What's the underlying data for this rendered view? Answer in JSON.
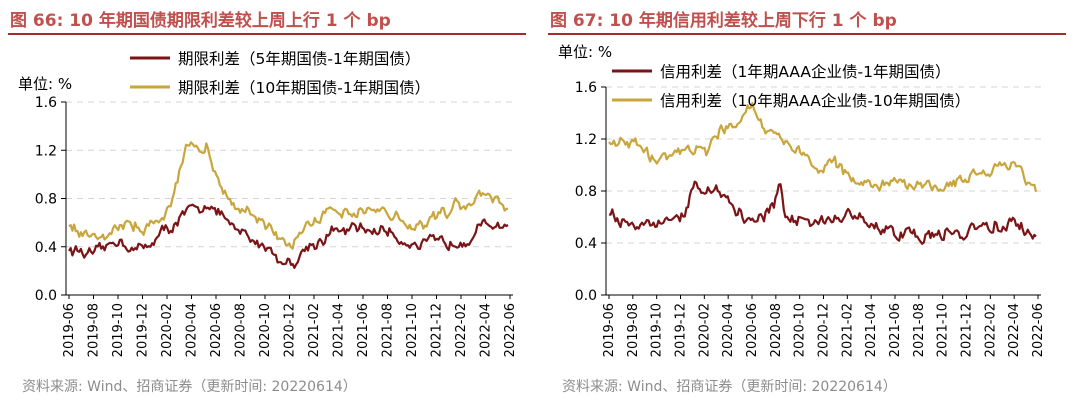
{
  "colors": {
    "series_dark": "#7B1416",
    "series_gold": "#C9A63D",
    "title": "#C0504D",
    "rule": "#A52A2A",
    "grid": "#d9d9d9",
    "source": "#8c8c8c"
  },
  "x_tick_labels": [
    "2019-06",
    "2019-08",
    "2019-10",
    "2019-12",
    "2020-02",
    "2020-04",
    "2020-06",
    "2020-08",
    "2020-10",
    "2020-12",
    "2021-02",
    "2021-04",
    "2021-06",
    "2021-08",
    "2021-10",
    "2021-12",
    "2022-02",
    "2022-04",
    "2022-06"
  ],
  "left": {
    "title": "图 66:  10 年期国债期限利差较上周上行 1 个 bp",
    "unit_label": "单位:   %",
    "source": "资料来源:  Wind、招商证券（更新时间: 20220614）"
  },
  "right": {
    "title": "图 67:  10 年期信用利差较上周下行 1 个 bp",
    "unit_label": "单位:   %",
    "source": "资料来源:  Wind、招商证券（更新时间: 20220614）"
  },
  "chart_data": [
    {
      "type": "line",
      "ylim": [
        0,
        1.6
      ],
      "yticks": [
        "0.0",
        "0.4",
        "0.8",
        "1.2",
        "1.6"
      ],
      "x": [
        "2019-06",
        "2019-08",
        "2019-10",
        "2019-12",
        "2020-02",
        "2020-04",
        "2020-06",
        "2020-08",
        "2020-10",
        "2020-12",
        "2021-02",
        "2021-04",
        "2021-06",
        "2021-08",
        "2021-10",
        "2021-12",
        "2022-02",
        "2022-04",
        "2022-06"
      ],
      "series": [
        {
          "name": "期限利差（5年期国债-1年期国债）",
          "values": [
            0.38,
            0.36,
            0.45,
            0.4,
            0.56,
            0.7,
            0.7,
            0.52,
            0.4,
            0.26,
            0.45,
            0.52,
            0.55,
            0.53,
            0.43,
            0.44,
            0.46,
            0.55,
            0.58
          ]
        },
        {
          "name": "期限利差（10年期国债-1年期国债）",
          "values": [
            0.58,
            0.5,
            0.56,
            0.53,
            0.7,
            1.28,
            0.95,
            0.72,
            0.57,
            0.45,
            0.65,
            0.72,
            0.75,
            0.7,
            0.6,
            0.62,
            0.72,
            0.82,
            0.76
          ]
        }
      ]
    },
    {
      "type": "line",
      "ylim": [
        0,
        1.6
      ],
      "yticks": [
        "0.0",
        "0.4",
        "0.8",
        "1.2",
        "1.6"
      ],
      "x": [
        "2019-06",
        "2019-08",
        "2019-10",
        "2019-12",
        "2020-02",
        "2020-04",
        "2020-06",
        "2020-08",
        "2020-10",
        "2020-12",
        "2021-02",
        "2021-04",
        "2021-06",
        "2021-08",
        "2021-10",
        "2021-12",
        "2022-02",
        "2022-04",
        "2022-06"
      ],
      "series": [
        {
          "name": "信用利差（1年期AAA企业债-1年期国债）",
          "values": [
            0.65,
            0.52,
            0.55,
            0.68,
            0.82,
            0.7,
            0.55,
            0.68,
            0.58,
            0.55,
            0.62,
            0.52,
            0.5,
            0.48,
            0.46,
            0.48,
            0.54,
            0.55,
            0.42
          ]
        },
        {
          "name": "信用利差（10年期AAA企业债-10年期国债）",
          "values": [
            1.22,
            1.18,
            1.08,
            1.1,
            1.1,
            1.28,
            1.35,
            1.2,
            1.1,
            0.98,
            0.95,
            0.88,
            0.88,
            0.85,
            0.84,
            0.9,
            0.95,
            1.0,
            0.85
          ]
        }
      ]
    }
  ]
}
